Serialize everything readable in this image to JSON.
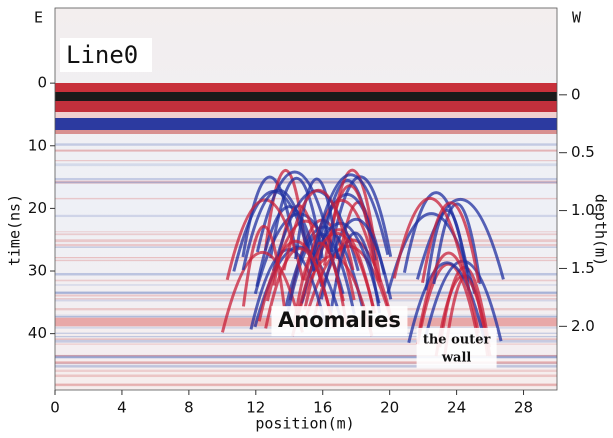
{
  "chart_data": {
    "type": "radargram",
    "title": "Line0",
    "direction_left": "E",
    "direction_right": "W",
    "x_label": "position(m)",
    "y_label": "time(ns)",
    "y2_label": "depth(m)",
    "xlim": [
      0,
      30
    ],
    "xticks": [
      0,
      4,
      8,
      12,
      16,
      20,
      24,
      28
    ],
    "ylim": [
      -12,
      49
    ],
    "yticks": [
      0,
      10,
      20,
      30,
      40
    ],
    "y_inverted": true,
    "y2lim": [
      -0.75,
      2.55
    ],
    "y2ticks": [
      0,
      0.5,
      {
        "value": 1,
        "label": "1.0"
      },
      1.5,
      {
        "value": 2,
        "label": "2.0"
      }
    ],
    "annotations": [
      {
        "text": "Anomalies",
        "x": 17,
        "y": 38
      },
      {
        "lines": [
          "the outer",
          "wall"
        ],
        "x": 24,
        "y": 41
      }
    ]
  }
}
